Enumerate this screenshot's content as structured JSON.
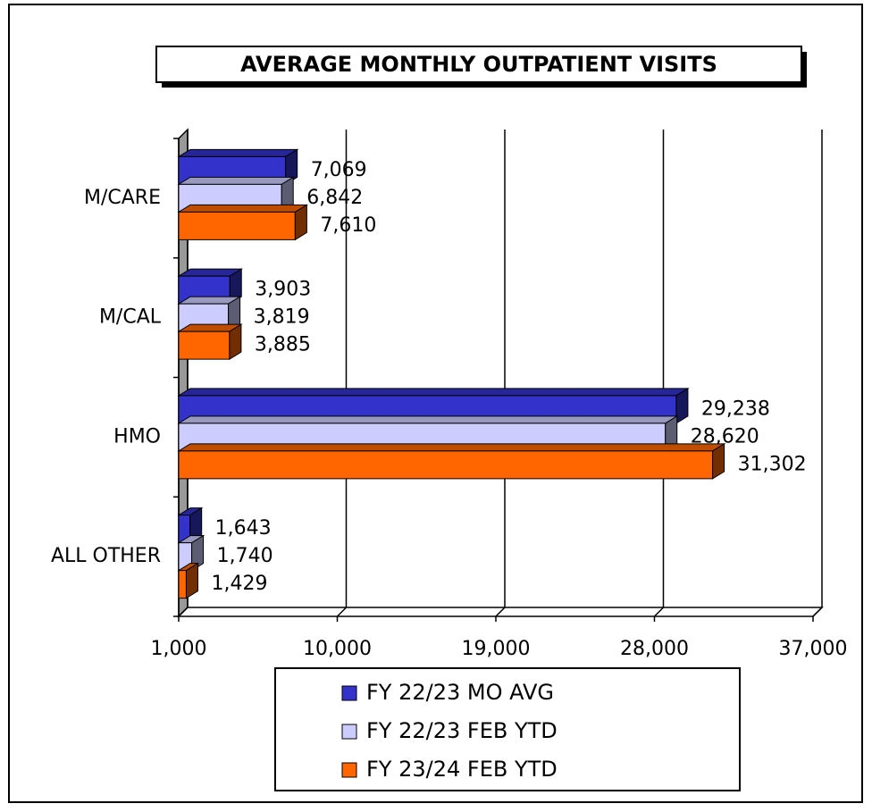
{
  "chart_data": {
    "type": "bar3d_horizontal",
    "title": "AVERAGE MONTHLY OUTPATIENT VISITS",
    "categories": [
      "M/CARE",
      "M/CAL",
      "HMO",
      "ALL OTHER"
    ],
    "series": [
      {
        "name": "FY 22/23 MO AVG",
        "color": "#3333cc",
        "values": [
          7069,
          3903,
          29238,
          1643
        ],
        "value_labels": [
          "7,069",
          "3,903",
          "29,238",
          "1,643"
        ]
      },
      {
        "name": "FY 22/23 FEB YTD",
        "color": "#ccccff",
        "values": [
          6842,
          3819,
          28620,
          1740
        ],
        "value_labels": [
          "6,842",
          "3,819",
          "28,620",
          "1,740"
        ]
      },
      {
        "name": "FY 23/24 FEB YTD",
        "color": "#ff6600",
        "values": [
          7610,
          3885,
          31302,
          1429
        ],
        "value_labels": [
          "7,610",
          "3,885",
          "31,302",
          "1,429"
        ]
      }
    ],
    "xlim": [
      1000,
      37000
    ],
    "xticks": [
      {
        "value": 1000,
        "label": "1,000"
      },
      {
        "value": 10000,
        "label": "10,000"
      },
      {
        "value": 19000,
        "label": "19,000"
      },
      {
        "value": 28000,
        "label": "28,000"
      },
      {
        "value": 37000,
        "label": "37,000"
      }
    ],
    "grid": true
  }
}
